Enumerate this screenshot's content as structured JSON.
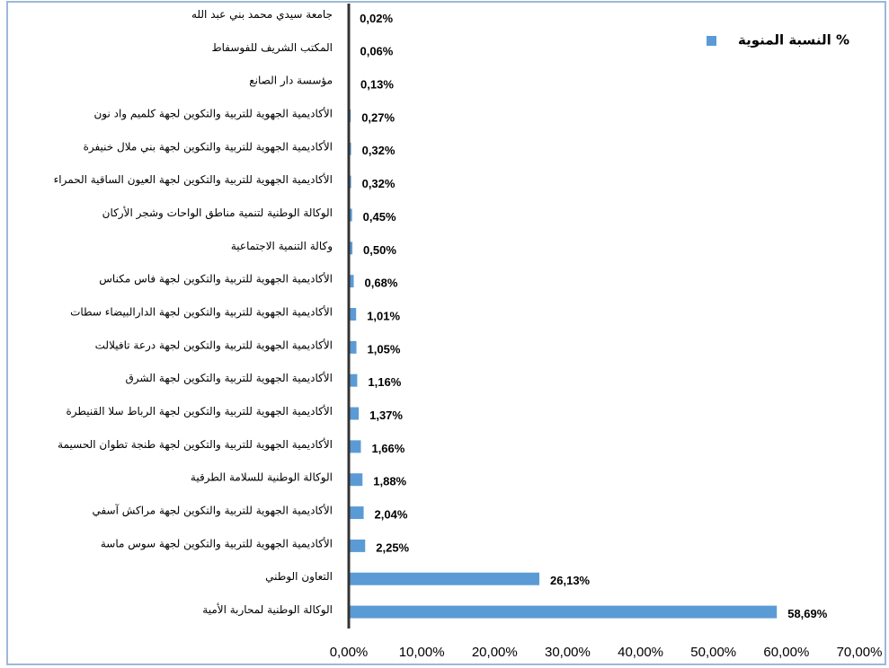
{
  "chart_data": {
    "type": "hbar",
    "categories": [
      "جامعة سيدي محمد بني عبد الله",
      "المكتب الشريف للفوسفاط",
      "مؤسسة دار الصانع",
      "الأكاديمية الجهوية للتربية والتكوين لجهة كلميم واد نون",
      "الأكاديمية الجهوية للتربية والتكوين لجهة بني ملال خنيفرة",
      "الأكاديمية الجهوية للتربية والتكوين لجهة العيون الساقية الحمراء",
      "الوكالة الوطنية لتنمية مناطق الواحات وشجر الأركان",
      "وكالة التنمية الاجتماعية",
      "الأكاديمية الجهوية للتربية والتكوين لجهة فاس مكناس",
      "الأكاديمية الجهوية للتربية والتكوين لجهة الدارالبيضاء سطات",
      "الأكاديمية الجهوية للتربية والتكوين لجهة درعة تافيلالت",
      "الأكاديمية الجهوية للتربية والتكوين لجهة الشرق",
      "الأكاديمية الجهوية للتربية والتكوين لجهة الرباط سلا القنيطرة",
      "الأكاديمية الجهوية للتربية والتكوين لجهة طنجة تطوان الحسيمة",
      "الوكالة الوطنية للسلامة الطرقية",
      "الأكاديمية الجهوية للتربية والتكوين لجهة مراكش آسفي",
      "الأكاديمية الجهوية للتربية والتكوين لجهة سوس ماسة",
      "التعاون الوطني",
      "الوكالة الوطنية لمحاربة الأمية"
    ],
    "series": [
      {
        "name": "النسبة المنوية %",
        "color": "#5b9bd5",
        "values": [
          0.02,
          0.06,
          0.13,
          0.27,
          0.32,
          0.32,
          0.45,
          0.5,
          0.68,
          1.01,
          1.05,
          1.16,
          1.37,
          1.66,
          1.88,
          2.04,
          2.25,
          26.13,
          58.69
        ],
        "value_labels": [
          "0,02%",
          "0,06%",
          "0,13%",
          "0,27%",
          "0,32%",
          "0,32%",
          "0,45%",
          "0,50%",
          "0,68%",
          "1,01%",
          "1,05%",
          "1,16%",
          "1,37%",
          "1,66%",
          "1,88%",
          "2,04%",
          "2,25%",
          "26,13%",
          "58,69%"
        ]
      }
    ],
    "xlim": [
      0,
      70
    ],
    "xticks": [
      {
        "value": 0,
        "label": "0,00%"
      },
      {
        "value": 10,
        "label": "10,00%"
      },
      {
        "value": 20,
        "label": "20,00%"
      },
      {
        "value": 30,
        "label": "30,00%"
      },
      {
        "value": 40,
        "label": "40,00%"
      },
      {
        "value": 50,
        "label": "50,00%"
      },
      {
        "value": 60,
        "label": "60,00%"
      },
      {
        "value": 70,
        "label": "70,00%"
      }
    ],
    "legend": "top-right"
  }
}
